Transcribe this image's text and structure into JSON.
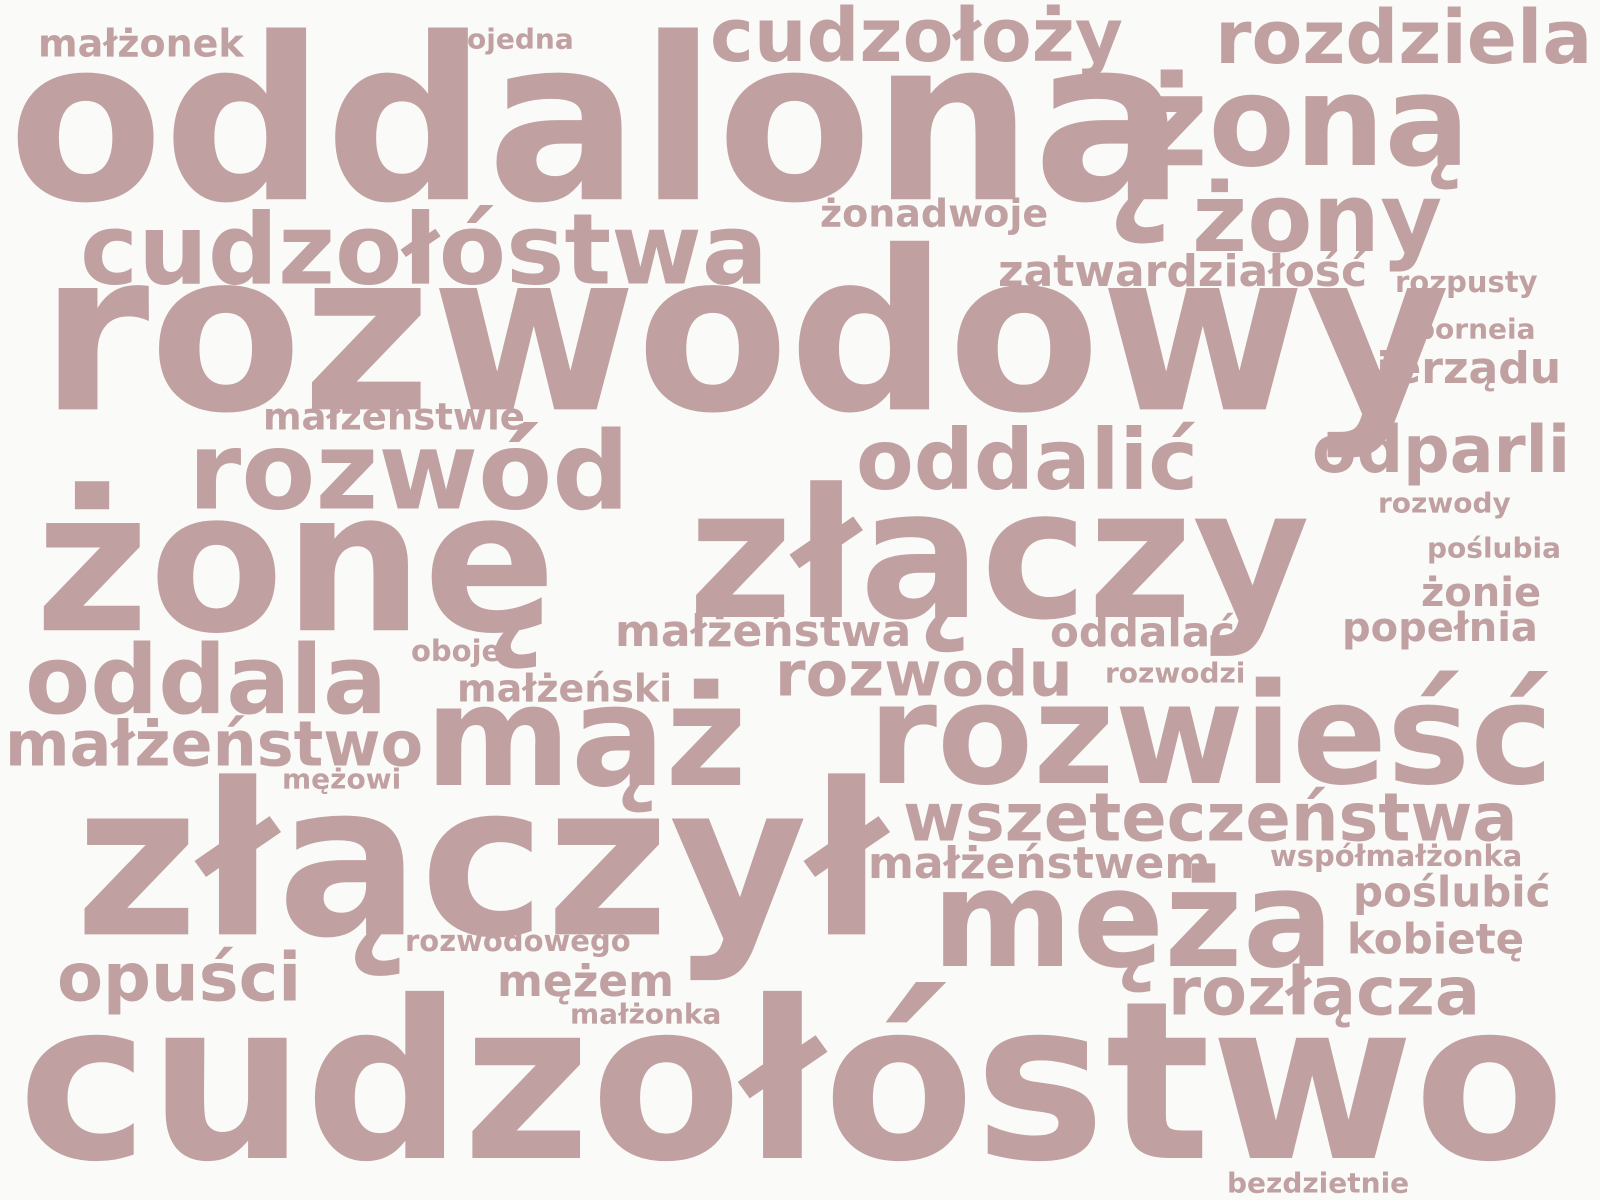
{
  "color": "#c0a0a1",
  "background": "#fafaf8",
  "words": [
    {
      "text": "oddaloną",
      "weight": 1.0
    },
    {
      "text": "rozwodowy",
      "weight": 0.98
    },
    {
      "text": "cudzołóstwo",
      "weight": 0.97
    },
    {
      "text": "złączył",
      "weight": 0.94
    },
    {
      "text": "żonę",
      "weight": 0.86
    },
    {
      "text": "złączy",
      "weight": 0.8
    },
    {
      "text": "mąż",
      "weight": 0.62
    },
    {
      "text": "rozwieść",
      "weight": 0.62
    },
    {
      "text": "męża",
      "weight": 0.6
    },
    {
      "text": "żoną",
      "weight": 0.56
    },
    {
      "text": "rozwód",
      "weight": 0.48
    },
    {
      "text": "cudzołóstwa",
      "weight": 0.44
    },
    {
      "text": "żony",
      "weight": 0.42
    },
    {
      "text": "oddala",
      "weight": 0.42
    },
    {
      "text": "oddalić",
      "weight": 0.37
    },
    {
      "text": "cudzołoży",
      "weight": 0.33
    },
    {
      "text": "rozdziela",
      "weight": 0.33
    },
    {
      "text": "wszeteczeństwa",
      "weight": 0.3
    },
    {
      "text": "rozłącza",
      "weight": 0.3
    },
    {
      "text": "opuści",
      "weight": 0.3
    },
    {
      "text": "odparli",
      "weight": 0.29
    },
    {
      "text": "rozwodu",
      "weight": 0.28
    },
    {
      "text": "małżeństwo",
      "weight": 0.28
    },
    {
      "text": "zatwardziałość",
      "weight": 0.2
    },
    {
      "text": "nierządu",
      "weight": 0.2
    },
    {
      "text": "małżeństwa",
      "weight": 0.2
    },
    {
      "text": "małżeństwem",
      "weight": 0.2
    },
    {
      "text": "mężem",
      "weight": 0.2
    },
    {
      "text": "oddalać",
      "weight": 0.19
    },
    {
      "text": "poślubić",
      "weight": 0.19
    },
    {
      "text": "kobietę",
      "weight": 0.19
    },
    {
      "text": "popełnia",
      "weight": 0.18
    },
    {
      "text": "żonie",
      "weight": 0.18
    },
    {
      "text": "małżeński",
      "weight": 0.18
    },
    {
      "text": "małżonek",
      "weight": 0.18
    },
    {
      "text": "żonadwoje",
      "weight": 0.17
    },
    {
      "text": "małżeństwie",
      "weight": 0.17
    },
    {
      "text": "współmałżonka",
      "weight": 0.14
    },
    {
      "text": "rozpusty",
      "weight": 0.14
    },
    {
      "text": "oboje",
      "weight": 0.14
    },
    {
      "text": "rozwodowego",
      "weight": 0.14
    },
    {
      "text": "porneia",
      "weight": 0.14
    },
    {
      "text": "rozwody",
      "weight": 0.14
    },
    {
      "text": "poślubia",
      "weight": 0.14
    },
    {
      "text": "rozwodzi",
      "weight": 0.14
    },
    {
      "text": "mężowi",
      "weight": 0.14
    },
    {
      "text": "pojedna",
      "weight": 0.14
    },
    {
      "text": "małżonka",
      "weight": 0.14
    },
    {
      "text": "bezdzietnie",
      "weight": 0.14
    }
  ]
}
